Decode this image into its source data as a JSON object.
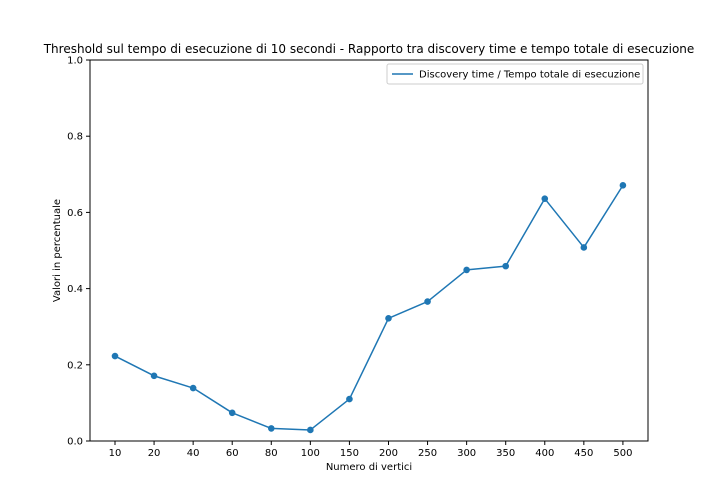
{
  "chart_data": {
    "type": "line",
    "title": "Threshold sul tempo di esecuzione di 10 secondi - Rapporto tra discovery time e tempo totale di esecuzione",
    "xlabel": "Numero di vertici",
    "ylabel": "Valori in percentuale",
    "categories": [
      "10",
      "20",
      "40",
      "60",
      "80",
      "100",
      "150",
      "200",
      "250",
      "300",
      "350",
      "400",
      "450",
      "500"
    ],
    "series": [
      {
        "name": "Discovery time / Tempo totale di esecuzione",
        "values": [
          0.223,
          0.171,
          0.139,
          0.074,
          0.033,
          0.029,
          0.11,
          0.322,
          0.366,
          0.449,
          0.459,
          0.636,
          0.508,
          0.671
        ],
        "color": "#1f77b4",
        "marker": "circle"
      }
    ],
    "ylim": [
      0,
      1
    ],
    "yticks": [
      "0.0",
      "0.2",
      "0.4",
      "0.6",
      "0.8",
      "1.0"
    ],
    "grid": false,
    "legend": "top-right"
  }
}
